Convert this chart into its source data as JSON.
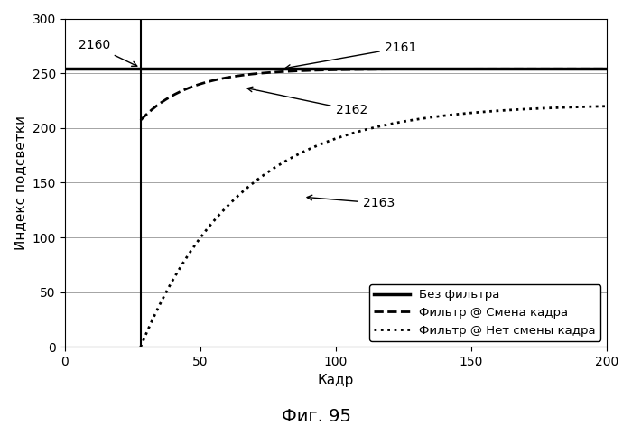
{
  "title": "Фиг. 95",
  "xlabel": "Кадр",
  "ylabel": "Индекс подсветки",
  "xlim": [
    0,
    200
  ],
  "ylim": [
    0,
    300
  ],
  "xticks": [
    0,
    50,
    100,
    150,
    200
  ],
  "yticks": [
    0,
    50,
    100,
    150,
    200,
    250,
    300
  ],
  "vertical_line_x": 28,
  "line1_label": "Без фильтра",
  "line2_label": "Фильтр @ Смена кадра",
  "line3_label": "Фильтр @ Нет смены кадра"
}
